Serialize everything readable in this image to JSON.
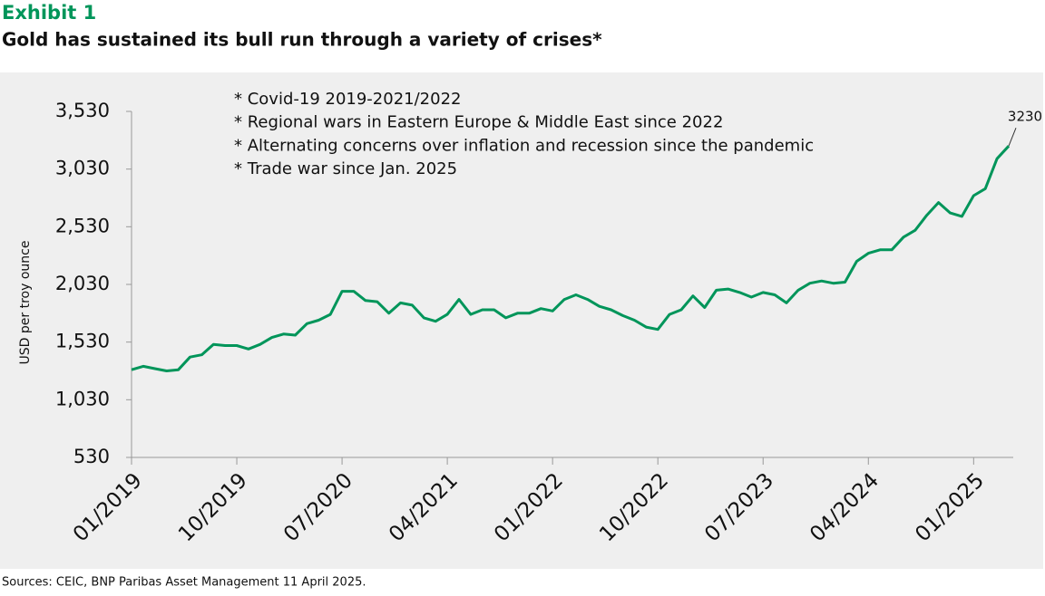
{
  "header": "Exhibit 1",
  "chart_data": {
    "type": "line",
    "title": "Gold has sustained its bull run through a variety of crises*",
    "y_label": "USD per troy ounce",
    "annotations": [
      "* Covid-19 2019-2021/2022",
      "* Regional wars in Eastern Europe & Middle East since 2022",
      "* Alternating concerns over inflation and recession since the pandemic",
      "* Trade war since Jan. 2025"
    ],
    "color": "#00955a",
    "x": [
      "01/2019",
      "02/2019",
      "03/2019",
      "04/2019",
      "05/2019",
      "06/2019",
      "07/2019",
      "08/2019",
      "09/2019",
      "10/2019",
      "11/2019",
      "12/2019",
      "01/2020",
      "02/2020",
      "03/2020",
      "04/2020",
      "05/2020",
      "06/2020",
      "07/2020",
      "08/2020",
      "09/2020",
      "10/2020",
      "11/2020",
      "12/2020",
      "01/2021",
      "02/2021",
      "03/2021",
      "04/2021",
      "05/2021",
      "06/2021",
      "07/2021",
      "08/2021",
      "09/2021",
      "10/2021",
      "11/2021",
      "12/2021",
      "01/2022",
      "02/2022",
      "03/2022",
      "04/2022",
      "05/2022",
      "06/2022",
      "07/2022",
      "08/2022",
      "09/2022",
      "10/2022",
      "11/2022",
      "12/2022",
      "01/2023",
      "02/2023",
      "03/2023",
      "04/2023",
      "05/2023",
      "06/2023",
      "07/2023",
      "08/2023",
      "09/2023",
      "10/2023",
      "11/2023",
      "12/2023",
      "01/2024",
      "02/2024",
      "03/2024",
      "04/2024",
      "05/2024",
      "06/2024",
      "07/2024",
      "08/2024",
      "09/2024",
      "10/2024",
      "11/2024",
      "12/2024",
      "01/2025",
      "02/2025",
      "03/2025",
      "04/2025"
    ],
    "values": [
      1290,
      1320,
      1300,
      1280,
      1290,
      1400,
      1420,
      1510,
      1500,
      1500,
      1470,
      1510,
      1570,
      1600,
      1590,
      1690,
      1720,
      1770,
      1970,
      1970,
      1890,
      1880,
      1780,
      1870,
      1850,
      1740,
      1710,
      1770,
      1900,
      1770,
      1810,
      1810,
      1740,
      1780,
      1780,
      1820,
      1800,
      1900,
      1940,
      1900,
      1840,
      1810,
      1760,
      1720,
      1660,
      1640,
      1770,
      1810,
      1930,
      1830,
      1980,
      1990,
      1960,
      1920,
      1960,
      1940,
      1870,
      1980,
      2040,
      2060,
      2040,
      2050,
      2230,
      2300,
      2330,
      2330,
      2440,
      2500,
      2630,
      2740,
      2650,
      2620,
      2800,
      2860,
      3120,
      3230
    ],
    "xlim": [
      "01/2019",
      "04/2025"
    ],
    "xticks": [
      "01/2019",
      "10/2019",
      "07/2020",
      "04/2021",
      "01/2022",
      "10/2022",
      "07/2023",
      "04/2024",
      "01/2025"
    ],
    "ylim": [
      530,
      3530
    ],
    "yticks": [
      530,
      {
        "value": 1030,
        "label": "1,030"
      },
      {
        "value": 1530,
        "label": "1,530"
      },
      {
        "value": 2030,
        "label": "2,030"
      },
      {
        "value": 2530,
        "label": "2,530"
      },
      {
        "value": 3030,
        "label": "3,030"
      },
      {
        "value": 3530,
        "label": "3,530"
      }
    ],
    "grid": false
  },
  "source": "Sources: CEIC, BNP Paribas Asset Management 11 April 2025."
}
